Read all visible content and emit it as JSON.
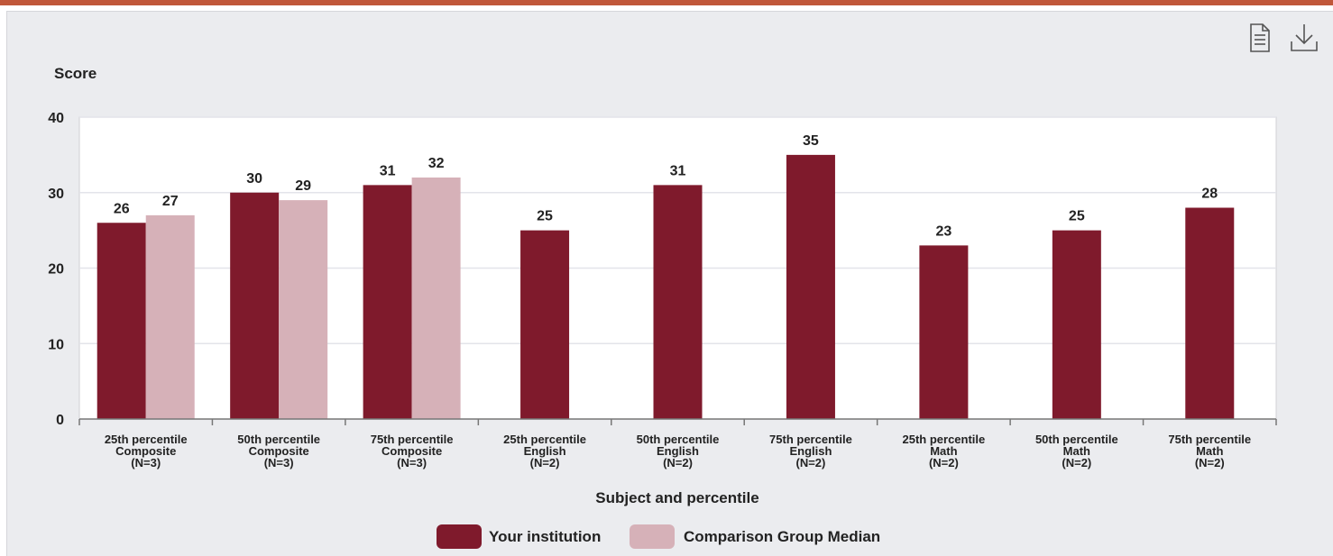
{
  "toolbar": {
    "icons": [
      "document-icon",
      "download-icon"
    ]
  },
  "colors": {
    "top_bar": "#c0573a",
    "your_institution": "#7f1a2c",
    "comparison_median": "#d6b1b8",
    "plot_bg": "#ffffff",
    "grid": "#e3e4ea"
  },
  "chart_data": {
    "type": "bar",
    "title": "",
    "ylabel": "Score",
    "xlabel": "Subject and percentile",
    "ylim": [
      0,
      40
    ],
    "yticks": [
      0,
      10,
      20,
      30,
      40
    ],
    "grid": true,
    "legend_position": "bottom",
    "categories": [
      [
        "25th percentile",
        "Composite",
        "(N=3)"
      ],
      [
        "50th percentile",
        "Composite",
        "(N=3)"
      ],
      [
        "75th percentile",
        "Composite",
        "(N=3)"
      ],
      [
        "25th percentile",
        "English",
        "(N=2)"
      ],
      [
        "50th percentile",
        "English",
        "(N=2)"
      ],
      [
        "75th percentile",
        "English",
        "(N=2)"
      ],
      [
        "25th percentile",
        "Math",
        "(N=2)"
      ],
      [
        "50th percentile",
        "Math",
        "(N=2)"
      ],
      [
        "75th percentile",
        "Math",
        "(N=2)"
      ]
    ],
    "series": [
      {
        "name": "Your institution",
        "color": "#7f1a2c",
        "values": [
          26,
          30,
          31,
          25,
          31,
          35,
          23,
          25,
          28
        ]
      },
      {
        "name": "Comparison Group Median",
        "color": "#d6b1b8",
        "values": [
          27,
          29,
          32,
          null,
          null,
          null,
          null,
          null,
          null
        ]
      }
    ]
  }
}
